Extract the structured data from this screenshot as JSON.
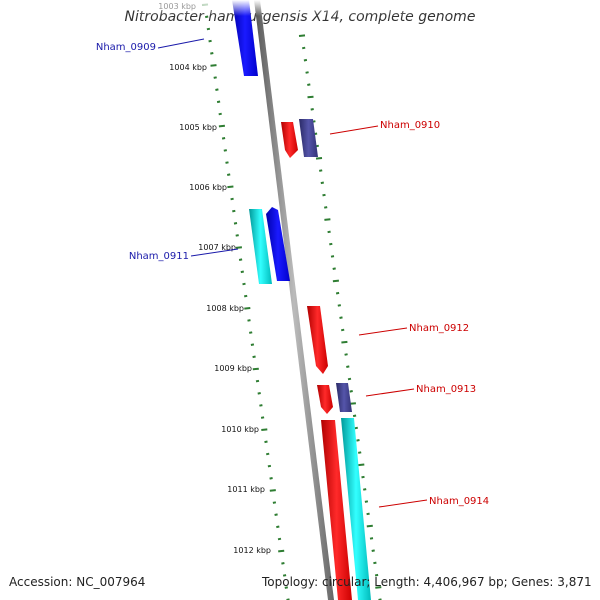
{
  "title": "Nitrobacter hamburgensis X14, complete genome",
  "footer": {
    "accession": "Accession: NC_007964",
    "summary": "Topology: circular; Length: 4,406,967 bp; Genes: 3,871"
  },
  "colors": {
    "backbone": "#808080",
    "tick": "#2e7d32",
    "label_blue": "#1a1aaa",
    "label_red": "#cc0000",
    "gene_blue": "#0000ee",
    "gene_red": "#ee0000",
    "gene_cyan": "#00cccc",
    "gene_purple": "#3d3d8a"
  },
  "scale_labels": [
    {
      "text": "1003 kbp",
      "kbp": 1003
    },
    {
      "text": "1004 kbp",
      "kbp": 1004
    },
    {
      "text": "1005 kbp",
      "kbp": 1005
    },
    {
      "text": "1006 kbp",
      "kbp": 1006
    },
    {
      "text": "1007 kbp",
      "kbp": 1007
    },
    {
      "text": "1008 kbp",
      "kbp": 1008
    },
    {
      "text": "1009 kbp",
      "kbp": 1009
    },
    {
      "text": "1010 kbp",
      "kbp": 1010
    },
    {
      "text": "1011 kbp",
      "kbp": 1011
    },
    {
      "text": "1012 kbp",
      "kbp": 1012
    }
  ],
  "gene_labels": [
    {
      "text": "Nham_0909",
      "color": "blue"
    },
    {
      "text": "Nham_0910",
      "color": "red"
    },
    {
      "text": "Nham_0911",
      "color": "blue"
    },
    {
      "text": "Nham_0912",
      "color": "red"
    },
    {
      "text": "Nham_0913",
      "color": "red"
    },
    {
      "text": "Nham_0914",
      "color": "red"
    }
  ]
}
